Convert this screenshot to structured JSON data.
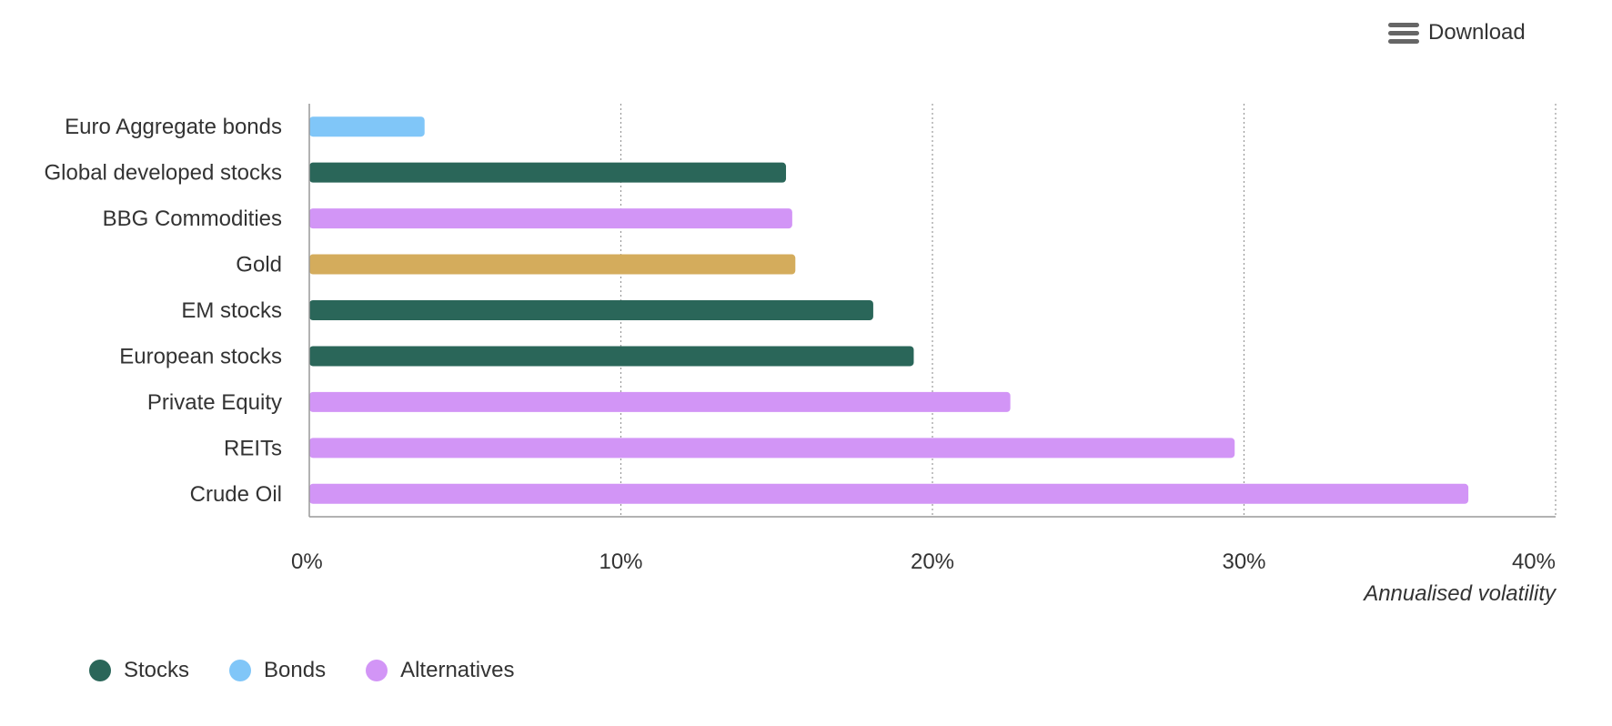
{
  "toolbar": {
    "download_label": "Download",
    "menu_icon": "hamburger-menu-icon"
  },
  "colors": {
    "Stocks": "#2a6659",
    "Bonds": "#80c6f8",
    "Alternatives": "#d295f6",
    "Gold": "#d4ac5c",
    "axis": "#999999",
    "grid": "#999999",
    "text": "#333333"
  },
  "legend": {
    "items": [
      {
        "label": "Stocks",
        "color": "#2a6659"
      },
      {
        "label": "Bonds",
        "color": "#80c6f8"
      },
      {
        "label": "Alternatives",
        "color": "#d295f6"
      }
    ]
  },
  "chart_data": {
    "type": "bar",
    "orientation": "horizontal",
    "title": "",
    "xlabel": "Annualised volatility",
    "ylabel": "",
    "xlim": [
      0,
      40
    ],
    "x_ticks": [
      "0%",
      "10%",
      "20%",
      "30%",
      "40%"
    ],
    "x_tick_values": [
      0,
      10,
      20,
      30,
      40
    ],
    "grid": "vertical dotted",
    "legend_position": "bottom-left",
    "categories": [
      "Euro Aggregate bonds",
      "Global developed stocks",
      "BBG Commodities",
      "Gold",
      "EM stocks",
      "European stocks",
      "Private Equity",
      "REITs",
      "Crude Oil"
    ],
    "values": [
      3.7,
      15.3,
      15.5,
      15.6,
      18.1,
      19.4,
      22.5,
      29.7,
      37.2
    ],
    "groups": [
      "Bonds",
      "Stocks",
      "Alternatives",
      "Gold",
      "Stocks",
      "Stocks",
      "Alternatives",
      "Alternatives",
      "Alternatives"
    ]
  }
}
